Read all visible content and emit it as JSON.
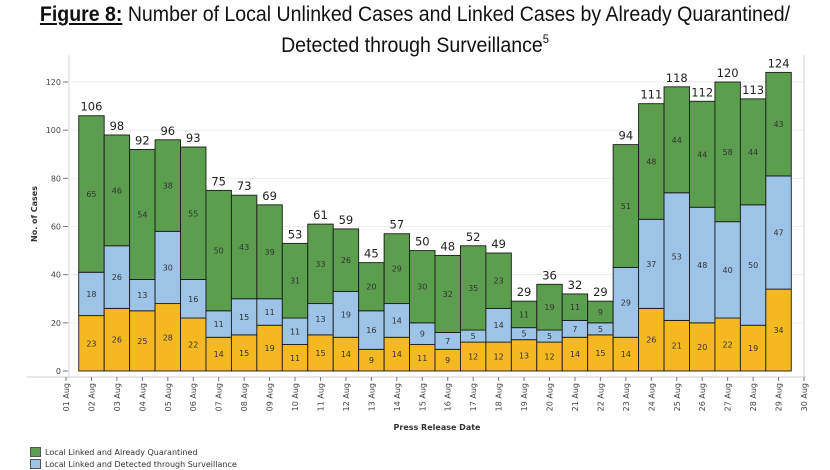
{
  "figure": {
    "label": "Figure 8:",
    "title_line1": "Number of Local Unlinked Cases and Linked Cases by Already Quarantined/",
    "title_line2": "Detected through Surveillance",
    "footnote_marker": "5"
  },
  "chart_data": {
    "type": "bar",
    "stacked": true,
    "title": "Number of Local Unlinked Cases and Linked Cases by Already Quarantined/ Detected through Surveillance",
    "xlabel": "Press Release Date",
    "ylabel": "No. of Cases",
    "ylim": [
      0,
      130
    ],
    "yticks": [
      0,
      20,
      40,
      60,
      80,
      100,
      120
    ],
    "grid": true,
    "legend_position": "bottom-left",
    "xtick_labels": [
      "01 Aug",
      "02 Aug",
      "03 Aug",
      "04 Aug",
      "05 Aug",
      "06 Aug",
      "07 Aug",
      "08 Aug",
      "09 Aug",
      "10 Aug",
      "11 Aug",
      "12 Aug",
      "13 Aug",
      "14 Aug",
      "15 Aug",
      "16 Aug",
      "17 Aug",
      "18 Aug",
      "19 Aug",
      "20 Aug",
      "21 Aug",
      "22 Aug",
      "23 Aug",
      "24 Aug",
      "25 Aug",
      "26 Aug",
      "27 Aug",
      "28 Aug",
      "29 Aug",
      "30 Aug"
    ],
    "categories": [
      "02 Aug",
      "03 Aug",
      "04 Aug",
      "05 Aug",
      "06 Aug",
      "07 Aug",
      "08 Aug",
      "09 Aug",
      "10 Aug",
      "11 Aug",
      "12 Aug",
      "13 Aug",
      "14 Aug",
      "15 Aug",
      "16 Aug",
      "17 Aug",
      "18 Aug",
      "19 Aug",
      "20 Aug",
      "21 Aug",
      "22 Aug",
      "23 Aug",
      "24 Aug",
      "25 Aug",
      "26 Aug",
      "27 Aug",
      "28 Aug",
      "29 Aug"
    ],
    "series": [
      {
        "name": "",
        "color": "#f4b821",
        "values": [
          23,
          26,
          25,
          28,
          22,
          14,
          15,
          19,
          11,
          15,
          14,
          9,
          14,
          11,
          9,
          12,
          12,
          13,
          12,
          14,
          15,
          14,
          26,
          21,
          20,
          22,
          19,
          34
        ]
      },
      {
        "name": "Local Linked and Detected through Surveillance",
        "color": "#9dc3e6",
        "values": [
          18,
          26,
          13,
          30,
          16,
          11,
          15,
          11,
          11,
          13,
          19,
          16,
          14,
          9,
          7,
          5,
          14,
          5,
          5,
          7,
          5,
          29,
          37,
          53,
          48,
          40,
          50,
          47
        ]
      },
      {
        "name": "Local Linked and Already Quarantined",
        "color": "#5b9e4d",
        "values": [
          65,
          46,
          54,
          38,
          55,
          50,
          43,
          39,
          31,
          33,
          26,
          20,
          29,
          30,
          32,
          35,
          23,
          11,
          19,
          11,
          9,
          51,
          48,
          44,
          44,
          58,
          44,
          43
        ]
      }
    ],
    "totals": [
      106,
      98,
      92,
      96,
      93,
      75,
      73,
      69,
      53,
      61,
      59,
      45,
      57,
      50,
      48,
      52,
      49,
      29,
      36,
      32,
      29,
      94,
      111,
      118,
      112,
      120,
      113,
      124
    ]
  },
  "legend": {
    "items": [
      {
        "label": "Local Linked and Already Quarantined",
        "color": "#5b9e4d"
      },
      {
        "label": "Local Linked and Detected through Surveillance",
        "color": "#9dc3e6"
      }
    ]
  }
}
